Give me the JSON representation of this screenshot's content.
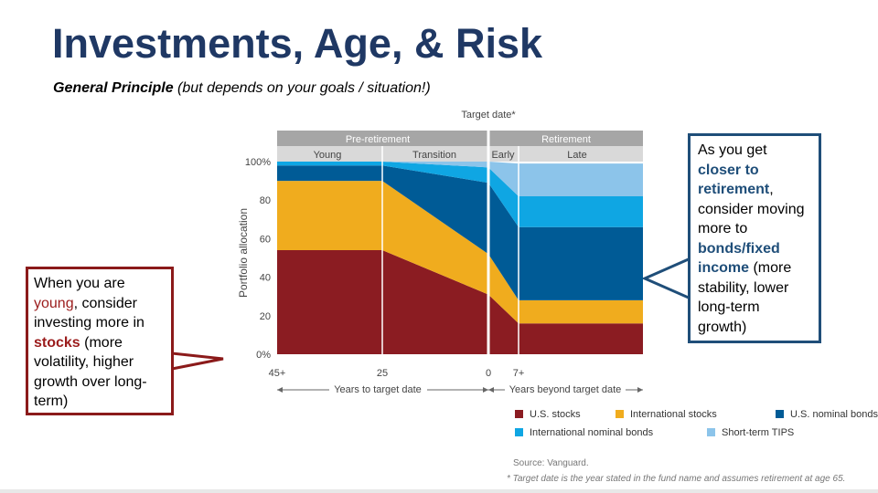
{
  "title": "Investments, Age, & Risk",
  "subtitle": {
    "bold": "General Principle",
    "rest": " (but depends on your goals / situation!)"
  },
  "callouts": {
    "left": {
      "p1": "When you are ",
      "h1": "young",
      "p2": ", consider investing more in ",
      "h2": "stocks",
      "p3": " (more volatility, higher growth over long-term)"
    },
    "right": {
      "p1": "As you get ",
      "h1": "closer to retirement",
      "p2": ", consider moving more to ",
      "h2": "bonds/fixed income",
      "p3": " (more stability, lower long-term growth)"
    }
  },
  "chart_data": {
    "type": "area",
    "target_label": "Target date*",
    "phase_headers": [
      "Pre-retirement",
      "Retirement"
    ],
    "stage_headers": [
      "Young",
      "Transition",
      "Early",
      "Late"
    ],
    "ylabel": "Portfolio allocation",
    "yticks": [
      "100%",
      "80",
      "60",
      "40",
      "20",
      "0%"
    ],
    "ylim": [
      0,
      100
    ],
    "xticks": [
      "45+",
      "25",
      "0",
      "7+"
    ],
    "xaxis_left": "Years to target date",
    "xaxis_right": "Years beyond target date",
    "x": [
      45,
      25,
      0,
      7
    ],
    "series": [
      {
        "name": "U.S. stocks",
        "color": "#8b1c22",
        "values": [
          54,
          54,
          31,
          16
        ]
      },
      {
        "name": "International stocks",
        "color": "#f0ac1e",
        "values": [
          36,
          36,
          21,
          12
        ]
      },
      {
        "name": "U.S. nominal bonds",
        "color": "#005b96",
        "values": [
          8,
          8,
          37,
          38
        ]
      },
      {
        "name": "International nominal bonds",
        "color": "#0fa6e3",
        "values": [
          2,
          2,
          8,
          16
        ]
      },
      {
        "name": "Short-term TIPS",
        "color": "#8cc4ea",
        "values": [
          0,
          0,
          3,
          17
        ]
      }
    ],
    "source": "Source: Vanguard.",
    "footnote": "* Target date is the year stated in the fund name and assumes retirement at age 65."
  }
}
